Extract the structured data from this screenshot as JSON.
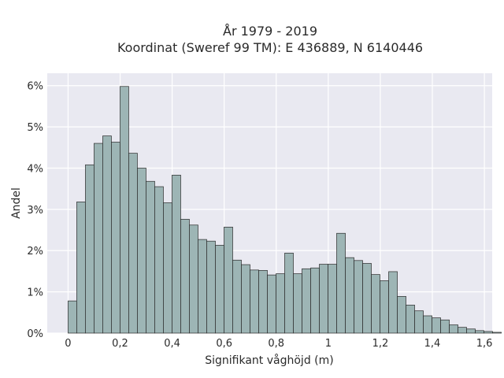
{
  "chart_data": {
    "type": "bar",
    "title": "År 1979 - 2019",
    "subtitle": "Koordinat (Sweref 99 TM): E 436889, N 6140446",
    "xlabel": "Signifikant våghöjd (m)",
    "ylabel": "Andel",
    "bin_width": 0.0333,
    "bin_start": 0,
    "values": [
      0.78,
      3.18,
      4.08,
      4.6,
      4.78,
      4.63,
      5.98,
      4.36,
      4.0,
      3.68,
      3.55,
      3.16,
      3.83,
      2.76,
      2.62,
      2.27,
      2.23,
      2.13,
      2.57,
      1.77,
      1.66,
      1.53,
      1.52,
      1.41,
      1.44,
      1.94,
      1.44,
      1.56,
      1.58,
      1.67,
      1.67,
      2.42,
      1.83,
      1.76,
      1.69,
      1.42,
      1.27,
      1.49,
      0.89,
      0.68,
      0.54,
      0.42,
      0.37,
      0.32,
      0.2,
      0.14,
      0.1,
      0.06,
      0.04,
      0.02
    ],
    "xlim": [
      -0.08,
      1.63
    ],
    "ylim": [
      0,
      6.3
    ],
    "xticks": [
      0,
      0.2,
      0.4,
      0.6,
      0.8,
      1,
      1.2,
      1.4,
      1.6
    ],
    "xtick_labels": [
      "0",
      "0,2",
      "0,4",
      "0,6",
      "0,8",
      "1",
      "1,2",
      "1,4",
      "1,6"
    ],
    "yticks": [
      0,
      1,
      2,
      3,
      4,
      5,
      6
    ],
    "ytick_labels": [
      "0%",
      "1%",
      "2%",
      "3%",
      "4%",
      "5%",
      "6%"
    ],
    "grid": true,
    "bar_color": "#9db5b5",
    "bar_edge_color": "#2a2a2a",
    "plot_bg": "#e9e9f1"
  }
}
